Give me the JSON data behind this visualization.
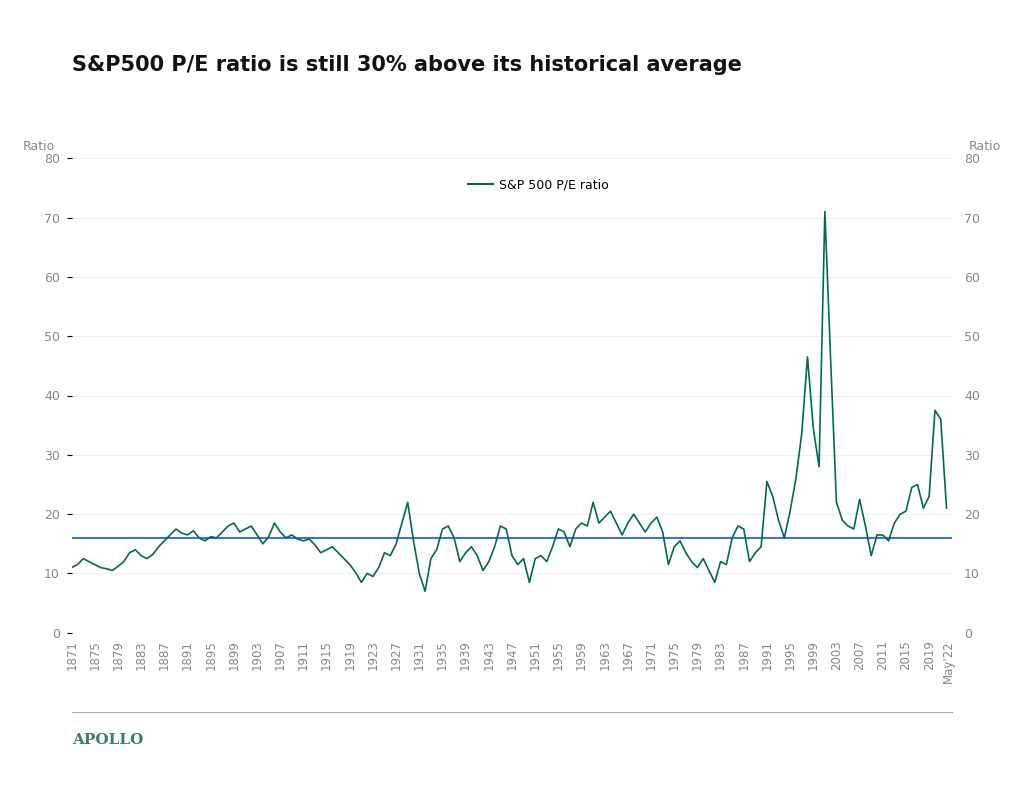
{
  "title": "S&P500 P/E ratio is still 30% above its historical average",
  "ylabel_left": "Ratio",
  "ylabel_right": "Ratio",
  "line_color": "#006B54",
  "avg_line_color": "#4472C4",
  "avg_value": 16.0,
  "background_color": "#FFFFFF",
  "legend_label": "S&P 500 P/E ratio",
  "apollo_label": "APOLLO",
  "apollo_color": "#3A7D6E",
  "ylim": [
    0,
    80
  ],
  "yticks": [
    0,
    10,
    20,
    30,
    40,
    50,
    60,
    70,
    80
  ],
  "years": [
    1871,
    1872,
    1873,
    1874,
    1875,
    1876,
    1877,
    1878,
    1879,
    1880,
    1881,
    1882,
    1883,
    1884,
    1885,
    1886,
    1887,
    1888,
    1889,
    1890,
    1891,
    1892,
    1893,
    1894,
    1895,
    1896,
    1897,
    1898,
    1899,
    1900,
    1901,
    1902,
    1903,
    1904,
    1905,
    1906,
    1907,
    1908,
    1909,
    1910,
    1911,
    1912,
    1913,
    1914,
    1915,
    1916,
    1917,
    1918,
    1919,
    1920,
    1921,
    1922,
    1923,
    1924,
    1925,
    1926,
    1927,
    1928,
    1929,
    1930,
    1931,
    1932,
    1933,
    1934,
    1935,
    1936,
    1937,
    1938,
    1939,
    1940,
    1941,
    1942,
    1943,
    1944,
    1945,
    1946,
    1947,
    1948,
    1949,
    1950,
    1951,
    1952,
    1953,
    1954,
    1955,
    1956,
    1957,
    1958,
    1959,
    1960,
    1961,
    1962,
    1963,
    1964,
    1965,
    1966,
    1967,
    1968,
    1969,
    1970,
    1971,
    1972,
    1973,
    1974,
    1975,
    1976,
    1977,
    1978,
    1979,
    1980,
    1981,
    1982,
    1983,
    1984,
    1985,
    1986,
    1987,
    1988,
    1989,
    1990,
    1991,
    1992,
    1993,
    1994,
    1995,
    1996,
    1997,
    1998,
    1999,
    2000,
    2001,
    2002,
    2003,
    2004,
    2005,
    2006,
    2007,
    2008,
    2009,
    2010,
    2011,
    2012,
    2013,
    2014,
    2015,
    2016,
    2017,
    2018,
    2019,
    2020,
    2021,
    2022
  ],
  "pe_values": [
    11.0,
    11.5,
    12.5,
    12.0,
    11.5,
    11.0,
    10.8,
    10.5,
    11.2,
    12.0,
    13.5,
    14.0,
    13.0,
    12.5,
    13.2,
    14.5,
    15.5,
    16.5,
    17.5,
    16.8,
    16.5,
    17.2,
    16.0,
    15.5,
    16.2,
    16.0,
    17.0,
    18.0,
    18.5,
    17.0,
    17.5,
    18.0,
    16.5,
    15.0,
    16.2,
    18.5,
    17.0,
    16.0,
    16.5,
    15.8,
    15.5,
    15.8,
    14.8,
    13.5,
    14.0,
    14.5,
    13.5,
    12.5,
    11.5,
    10.2,
    8.5,
    10.0,
    9.5,
    11.0,
    13.5,
    13.0,
    15.0,
    18.5,
    22.0,
    15.5,
    10.0,
    7.0,
    12.5,
    14.0,
    17.5,
    18.0,
    16.0,
    12.0,
    13.5,
    14.5,
    13.0,
    10.5,
    12.0,
    14.5,
    18.0,
    17.5,
    13.0,
    11.5,
    12.5,
    8.5,
    12.5,
    13.0,
    12.0,
    14.5,
    17.5,
    17.0,
    14.5,
    17.5,
    18.5,
    18.0,
    22.0,
    18.5,
    19.5,
    20.5,
    18.5,
    16.5,
    18.5,
    20.0,
    18.5,
    17.0,
    18.5,
    19.5,
    17.0,
    11.5,
    14.5,
    15.5,
    13.5,
    12.0,
    11.0,
    12.5,
    10.5,
    8.5,
    12.0,
    11.5,
    16.0,
    18.0,
    17.5,
    12.0,
    13.5,
    14.5,
    25.5,
    23.0,
    19.0,
    16.0,
    20.5,
    26.0,
    33.5,
    46.5,
    34.5,
    28.0,
    71.0,
    46.0,
    22.0,
    19.0,
    18.0,
    17.5,
    22.5,
    18.0,
    13.0,
    16.5,
    16.5,
    15.5,
    18.5,
    20.0,
    20.5,
    24.5,
    25.0,
    21.0,
    23.0,
    37.5,
    36.0,
    21.0
  ],
  "x_tick_years": [
    1871,
    1875,
    1879,
    1883,
    1887,
    1891,
    1895,
    1899,
    1903,
    1907,
    1911,
    1915,
    1919,
    1923,
    1927,
    1931,
    1935,
    1939,
    1943,
    1947,
    1951,
    1955,
    1959,
    1963,
    1967,
    1971,
    1975,
    1979,
    1983,
    1987,
    1991,
    1995,
    1999,
    2003,
    2007,
    2011,
    2015,
    2019
  ],
  "last_tick_label": "May'22",
  "title_fontsize": 15,
  "tick_color": "#888888",
  "tick_fontsize": 8.5
}
